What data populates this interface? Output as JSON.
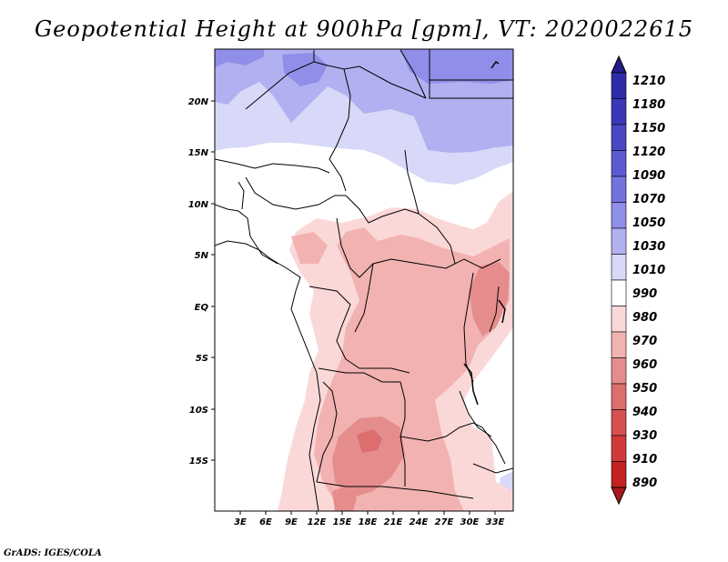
{
  "title": "Geopotential Height at 900hPa [gpm], VT: 2020022615",
  "credit": "GrADS: IGES/COLA",
  "chart_data": {
    "type": "heatmap",
    "variable": "Geopotential Height",
    "level": "900hPa",
    "units": "gpm",
    "valid_time": "2020022615",
    "x_ticks": [
      "3E",
      "6E",
      "9E",
      "12E",
      "15E",
      "18E",
      "21E",
      "24E",
      "27E",
      "30E",
      "33E"
    ],
    "y_ticks": [
      "20N",
      "15N",
      "10N",
      "5N",
      "EQ",
      "5S",
      "10S",
      "15S"
    ],
    "lon_range": [
      0,
      35
    ],
    "lat_range": [
      -20,
      25
    ],
    "colorbar": {
      "levels": [
        "1210",
        "1180",
        "1150",
        "1120",
        "1090",
        "1070",
        "1050",
        "1030",
        "1010",
        "990",
        "980",
        "970",
        "960",
        "950",
        "940",
        "930",
        "910",
        "890"
      ],
      "colors": [
        "#241c8c",
        "#2e2aa8",
        "#3b38b8",
        "#4b48c6",
        "#5c5ad2",
        "#7473de",
        "#8f8ee8",
        "#b1b0f0",
        "#d8d8f8",
        "#ffffff",
        "#fbd8d8",
        "#f2b2b2",
        "#e58d8d",
        "#dc6e6e",
        "#d75050",
        "#d03a3a",
        "#c22222",
        "#a8181c"
      ]
    }
  }
}
